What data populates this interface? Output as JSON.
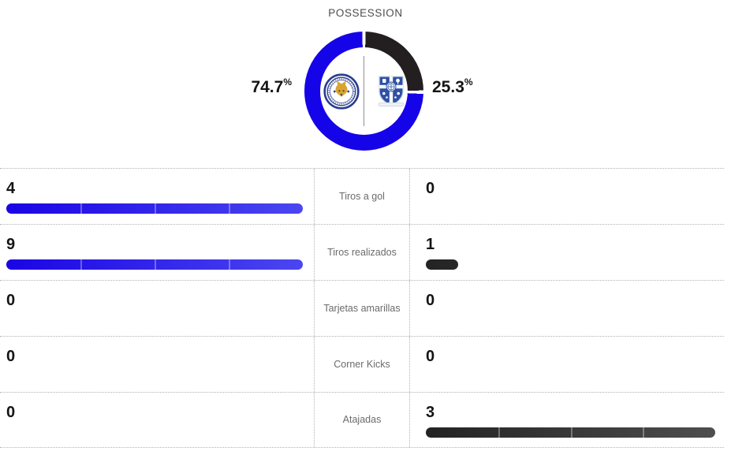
{
  "header": {
    "title": "POSSESSION"
  },
  "possession": {
    "home_value": "74.7",
    "away_value": "25.3",
    "percent_symbol": "%"
  },
  "teams": {
    "home": {
      "name": "Leicester City",
      "crest_icon": "leicester-city-crest",
      "color": "#1504e8"
    },
    "away": {
      "name": "Tranmere Rovers",
      "crest_icon": "tranmere-rovers-crest",
      "color": "#231f20"
    }
  },
  "stats": [
    {
      "label": "Tiros a gol",
      "home": 4,
      "away": 0
    },
    {
      "label": "Tiros realizados",
      "home": 9,
      "away": 1
    },
    {
      "label": "Tarjetas amarillas",
      "home": 0,
      "away": 0
    },
    {
      "label": "Corner Kicks",
      "home": 0,
      "away": 0
    },
    {
      "label": "Atajadas",
      "home": 0,
      "away": 3
    }
  ],
  "chart_data": [
    {
      "type": "pie",
      "donut": true,
      "title": "POSSESSION",
      "labels": [
        "Leicester City",
        "Tranmere Rovers"
      ],
      "values": [
        74.7,
        25.3
      ],
      "value_labels": [
        "74.7%",
        "25.3%"
      ],
      "colors": [
        "#1504e8",
        "#231f20"
      ],
      "start_angle_deg": 0,
      "direction": "clockwise",
      "legend_position": "none"
    },
    {
      "type": "bar",
      "orientation": "horizontal",
      "categories": [
        "Tiros a gol",
        "Tiros realizados",
        "Tarjetas amarillas",
        "Corner Kicks",
        "Atajadas"
      ],
      "series": [
        {
          "name": "Leicester City",
          "values": [
            4,
            9,
            0,
            0,
            0
          ],
          "gradient": [
            "#1a05e4",
            "#4b46f0"
          ]
        },
        {
          "name": "Tranmere Rovers",
          "values": [
            0,
            1,
            0,
            0,
            3
          ],
          "gradient": [
            "#232323",
            "#4e4e4e"
          ]
        }
      ],
      "scaling": "row-max",
      "segments_per_bar": 4,
      "grid": "dotted-row-separators"
    }
  ],
  "style": {
    "dotted_line_color": "#b3b3b3",
    "label_color": "#6b6b6b",
    "number_color": "#141414",
    "title_color": "#4d4d4d",
    "center_divider_color": "#8f8f8f"
  }
}
